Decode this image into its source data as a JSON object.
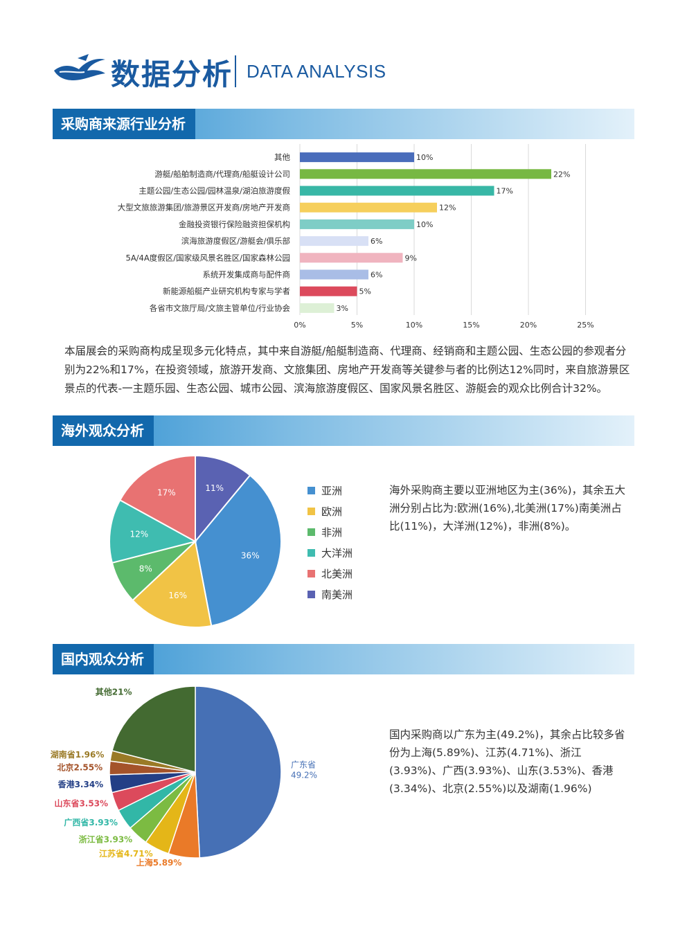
{
  "header": {
    "title_cn": "数据分析",
    "title_en": "DATA ANALYSIS",
    "logo_icon": "wave-boat-logo-icon"
  },
  "section1": {
    "title": "采购商来源行业分析",
    "paragraph": "本届展会的采购商构成呈现多元化特点，其中来自游艇/船艇制造商、代理商、经销商和主题公园、生态公园的参观者分别为22%和17%，在投资领域，旅游开发商、文旅集团、房地产开发商等关键参与者的比例达12%同时，来自旅游景区景点的代表-一主题乐园、生态公园、城市公园、滨海旅游度假区、国家风景名胜区、游艇会的观众比例合计32%。"
  },
  "section2": {
    "title": "海外观众分析",
    "text": "海外采购商主要以亚洲地区为主(36%)，其余五大洲分别占比为:欧洲(16%),北美洲(17%)南美洲占比(11%)，大洋洲(12%)，非洲(8%)。"
  },
  "section3": {
    "title": "国内观众分析",
    "text": "国内采购商以广东为主(49.2%)，其余占比较多省份为上海(5.89%)、江苏(4.71%)、浙江(3.93%)、广西(3.93%)、山东(3.53%)、香港(3.34%)、北京(2.55%)以及湖南(1.96%)"
  },
  "chart_data": [
    {
      "type": "bar",
      "orientation": "horizontal",
      "categories": [
        "其他",
        "游艇/船舶制造商/代理商/船艇设计公司",
        "主题公园/生态公园/园林温泉/湖泊旅游度假",
        "大型文旅旅游集团/旅游景区开发商/房地产开发商",
        "金融投资银行保险融资担保机构",
        "滨海旅游度假区/游艇会/俱乐部",
        "5A/4A度假区/国家级风景名胜区/国家森林公园",
        "系统开发集成商与配件商",
        "新能源船艇产业研究机构专家与学者",
        "各省市文旅厅局/文旅主管单位/行业协会"
      ],
      "values": [
        10,
        22,
        17,
        12,
        10,
        6,
        9,
        6,
        5,
        3
      ],
      "value_labels": [
        "10%",
        "22%",
        "17%",
        "12%",
        "10%",
        "6%",
        "9%",
        "6%",
        "5%",
        "3%"
      ],
      "colors": [
        "#4a6dbb",
        "#77b843",
        "#38b7a6",
        "#f6cf5c",
        "#7ecdc6",
        "#d8e0f5",
        "#f0b4bf",
        "#a9bde6",
        "#dc4a5c",
        "#ddf0d6"
      ],
      "xticks": [
        "0%",
        "5%",
        "10%",
        "15%",
        "20%",
        "25%"
      ],
      "xlim": [
        0,
        25
      ],
      "grid": true
    },
    {
      "type": "pie",
      "labels": [
        "南美洲",
        "亚洲",
        "欧洲",
        "非洲",
        "大洋洲",
        "北美洲"
      ],
      "values": [
        11,
        36,
        16,
        8,
        12,
        17
      ],
      "value_labels": [
        "11%",
        "36%",
        "16%",
        "8%",
        "12%",
        "17%"
      ],
      "colors": [
        "#5a62b2",
        "#4590d0",
        "#f1c345",
        "#5cba6c",
        "#3fbcb0",
        "#e87272"
      ],
      "legend": {
        "position": "right",
        "items": [
          {
            "label": "亚洲",
            "color": "#4590d0"
          },
          {
            "label": "欧洲",
            "color": "#f1c345"
          },
          {
            "label": "非洲",
            "color": "#5cba6c"
          },
          {
            "label": "大洋洲",
            "color": "#3fbcb0"
          },
          {
            "label": "北美洲",
            "color": "#e87272"
          },
          {
            "label": "南美洲",
            "color": "#5a62b2"
          }
        ]
      }
    },
    {
      "type": "pie",
      "labels": [
        "广东省",
        "上海",
        "江苏省",
        "浙江省",
        "广西省",
        "山东省",
        "香港",
        "北京",
        "湖南省",
        "其他"
      ],
      "values": [
        49.2,
        5.89,
        4.71,
        3.93,
        3.93,
        3.53,
        3.34,
        2.55,
        1.96,
        21
      ],
      "display_labels": [
        "广东省\n49.2%",
        "上海5.89%",
        "江苏省4.71%",
        "浙江省3.93%",
        "广西省3.93%",
        "山东省3.53%",
        "香港3.34%",
        "北京2.55%",
        "湖南省1.96%",
        "其他21%"
      ],
      "colors": [
        "#4670b5",
        "#ea7a28",
        "#e4b618",
        "#7cbb42",
        "#32b7a7",
        "#dc4a5c",
        "#233f86",
        "#a4532a",
        "#9a7a26",
        "#436a31"
      ]
    }
  ]
}
